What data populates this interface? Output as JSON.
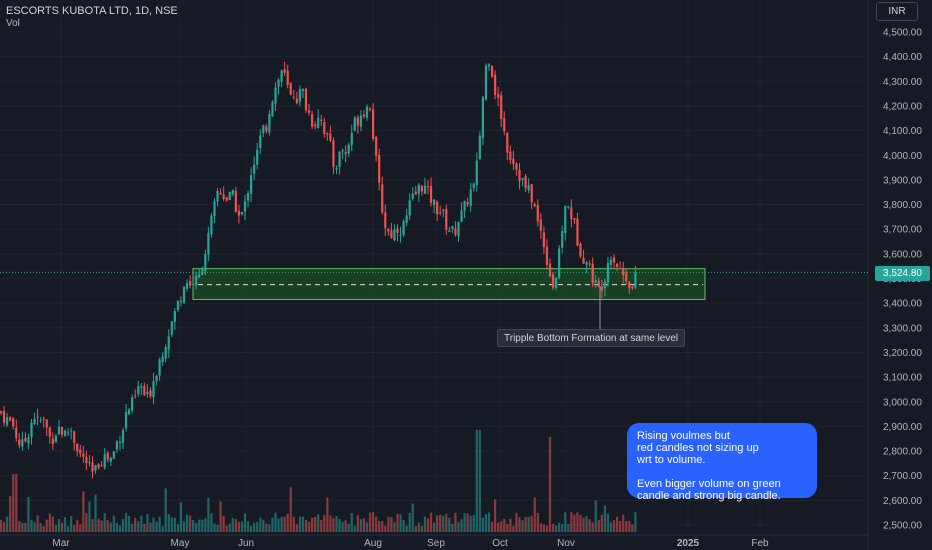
{
  "header": {
    "symbol_title": "ESCORTS KUBOTA LTD, 1D, NSE",
    "volume_label": "Vol"
  },
  "currency_button": "INR",
  "last_price_label": "3,524.80",
  "annotation_label": "Tripple Bottom Formation at same level",
  "note_text": "Rising voulmes but\nred candles not sizing up\nwrt to volume.\n\nEven bigger volume on green\ncandle and strong big candle.",
  "colors": {
    "background": "#161a25",
    "up": "#26a69a",
    "down": "#ef5350",
    "zone_fill": "#1b5e20",
    "note_bg": "#2962ff"
  },
  "chart_data": {
    "type": "candlestick",
    "ylim": [
      2480,
      4560
    ],
    "y_ticks": [
      "4,500.00",
      "4,400.00",
      "4,300.00",
      "4,200.00",
      "4,100.00",
      "4,000.00",
      "3,900.00",
      "3,800.00",
      "3,700.00",
      "3,600.00",
      "3,500.00",
      "3,400.00",
      "3,300.00",
      "3,200.00",
      "3,100.00",
      "3,000.00",
      "2,900.00",
      "2,800.00",
      "2,700.00",
      "2,600.00",
      "2,500.00"
    ],
    "x_ticks": [
      "Mar",
      "May",
      "Jun",
      "Aug",
      "Sep",
      "Oct",
      "Nov",
      "2025",
      "Feb"
    ],
    "last_price": 3524.8,
    "support_zone": {
      "low": 3415,
      "high": 3540,
      "mid": 3475
    },
    "series": [
      {
        "close_path": [
          [
            0,
            2960
          ],
          [
            6,
            2930
          ],
          [
            10,
            2920
          ],
          [
            14,
            2900
          ],
          [
            18,
            2840
          ],
          [
            22,
            2820
          ],
          [
            26,
            2850
          ],
          [
            30,
            2900
          ],
          [
            34,
            2950
          ],
          [
            38,
            2910
          ],
          [
            42,
            2930
          ],
          [
            46,
            2900
          ],
          [
            50,
            2850
          ],
          [
            54,
            2860
          ],
          [
            58,
            2900
          ],
          [
            62,
            2880
          ],
          [
            66,
            2860
          ],
          [
            70,
            2900
          ],
          [
            74,
            2850
          ],
          [
            78,
            2810
          ],
          [
            82,
            2770
          ],
          [
            86,
            2760
          ],
          [
            90,
            2720
          ],
          [
            94,
            2700
          ],
          [
            98,
            2750
          ],
          [
            102,
            2770
          ],
          [
            106,
            2780
          ],
          [
            110,
            2760
          ],
          [
            114,
            2800
          ],
          [
            118,
            2850
          ],
          [
            122,
            2880
          ],
          [
            126,
            2950
          ],
          [
            130,
            2980
          ],
          [
            134,
            3000
          ],
          [
            138,
            3050
          ],
          [
            142,
            3060
          ],
          [
            146,
            3000
          ],
          [
            150,
            3040
          ],
          [
            154,
            3100
          ],
          [
            158,
            3150
          ],
          [
            162,
            3200
          ],
          [
            166,
            3250
          ],
          [
            170,
            3300
          ],
          [
            174,
            3350
          ],
          [
            178,
            3400
          ],
          [
            182,
            3450
          ],
          [
            186,
            3500
          ],
          [
            190,
            3470
          ],
          [
            194,
            3500
          ],
          [
            198,
            3480
          ],
          [
            202,
            3560
          ],
          [
            206,
            3620
          ],
          [
            210,
            3700
          ],
          [
            214,
            3780
          ],
          [
            218,
            3860
          ],
          [
            222,
            3850
          ],
          [
            226,
            3820
          ],
          [
            230,
            3830
          ],
          [
            234,
            3830
          ],
          [
            238,
            3750
          ],
          [
            242,
            3760
          ],
          [
            246,
            3810
          ],
          [
            250,
            3920
          ],
          [
            254,
            3970
          ],
          [
            258,
            4020
          ],
          [
            262,
            4100
          ],
          [
            266,
            4110
          ],
          [
            270,
            4200
          ],
          [
            274,
            4260
          ],
          [
            278,
            4300
          ],
          [
            282,
            4350
          ],
          [
            286,
            4300
          ],
          [
            290,
            4230
          ],
          [
            294,
            4250
          ],
          [
            298,
            4230
          ],
          [
            302,
            4270
          ],
          [
            306,
            4200
          ],
          [
            310,
            4160
          ],
          [
            314,
            4120
          ],
          [
            318,
            4170
          ],
          [
            322,
            4140
          ],
          [
            326,
            4080
          ],
          [
            330,
            4040
          ],
          [
            334,
            3950
          ],
          [
            338,
            3980
          ],
          [
            342,
            4030
          ],
          [
            346,
            4000
          ],
          [
            350,
            4070
          ],
          [
            354,
            4130
          ],
          [
            358,
            4150
          ],
          [
            362,
            4180
          ],
          [
            366,
            4190
          ],
          [
            370,
            4210
          ],
          [
            374,
            4050
          ],
          [
            378,
            3900
          ],
          [
            382,
            3790
          ],
          [
            386,
            3700
          ],
          [
            390,
            3680
          ],
          [
            394,
            3690
          ],
          [
            398,
            3710
          ],
          [
            402,
            3700
          ],
          [
            406,
            3740
          ],
          [
            410,
            3800
          ],
          [
            414,
            3830
          ],
          [
            418,
            3860
          ],
          [
            422,
            3880
          ],
          [
            426,
            3860
          ],
          [
            430,
            3830
          ],
          [
            434,
            3800
          ],
          [
            438,
            3780
          ],
          [
            442,
            3770
          ],
          [
            446,
            3720
          ],
          [
            450,
            3700
          ],
          [
            454,
            3680
          ],
          [
            458,
            3740
          ],
          [
            462,
            3760
          ],
          [
            466,
            3800
          ],
          [
            470,
            3850
          ],
          [
            474,
            3870
          ],
          [
            478,
            3990
          ],
          [
            482,
            4200
          ],
          [
            486,
            4360
          ],
          [
            490,
            4410
          ],
          [
            494,
            4280
          ],
          [
            498,
            4220
          ],
          [
            502,
            4150
          ],
          [
            506,
            4050
          ],
          [
            510,
            4000
          ],
          [
            514,
            3980
          ],
          [
            518,
            3930
          ],
          [
            522,
            3900
          ],
          [
            526,
            3860
          ],
          [
            530,
            3850
          ],
          [
            534,
            3800
          ],
          [
            538,
            3720
          ],
          [
            542,
            3680
          ],
          [
            546,
            3600
          ],
          [
            550,
            3520
          ],
          [
            554,
            3460
          ],
          [
            558,
            3550
          ],
          [
            562,
            3700
          ],
          [
            566,
            3800
          ],
          [
            570,
            3780
          ],
          [
            574,
            3720
          ],
          [
            578,
            3650
          ],
          [
            582,
            3600
          ],
          [
            586,
            3570
          ],
          [
            590,
            3540
          ],
          [
            594,
            3490
          ],
          [
            598,
            3450
          ],
          [
            602,
            3480
          ],
          [
            606,
            3530
          ],
          [
            610,
            3610
          ],
          [
            614,
            3580
          ],
          [
            618,
            3550
          ],
          [
            622,
            3520
          ],
          [
            626,
            3510
          ],
          [
            630,
            3480
          ],
          [
            634,
            3440
          ],
          [
            636,
            3525
          ]
        ]
      }
    ],
    "annotation": "Tripple Bottom Formation at same level"
  }
}
